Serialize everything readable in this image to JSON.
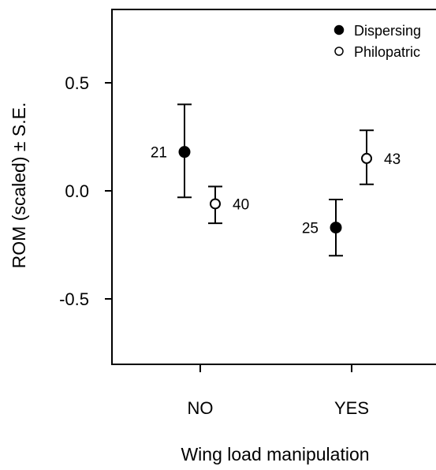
{
  "chart_data": {
    "type": "scatter",
    "subtype": "point-with-error-bars",
    "xlabel": "Wing load manipulation",
    "ylabel": "ROM (scaled) ± S.E.",
    "categories": [
      "NO",
      "YES"
    ],
    "ylim": [
      -0.8,
      0.85
    ],
    "yticks": [
      {
        "value": 0.5,
        "label": "0.5"
      },
      {
        "value": 0.0,
        "label": "0.0"
      },
      {
        "value": -0.5,
        "label": "-0.5"
      }
    ],
    "grid": false,
    "legend_position": "top-right",
    "series": [
      {
        "name": "Dispersing",
        "marker": "filled-circle",
        "points": [
          {
            "category": "NO",
            "y": 0.18,
            "lower": -0.03,
            "upper": 0.4,
            "n": "21"
          },
          {
            "category": "YES",
            "y": -0.17,
            "lower": -0.3,
            "upper": -0.04,
            "n": "25"
          }
        ]
      },
      {
        "name": "Philopatric",
        "marker": "open-circle",
        "points": [
          {
            "category": "NO",
            "y": -0.06,
            "lower": -0.15,
            "upper": 0.02,
            "n": "40"
          },
          {
            "category": "YES",
            "y": 0.15,
            "lower": 0.03,
            "upper": 0.28,
            "n": "43"
          }
        ]
      }
    ]
  }
}
